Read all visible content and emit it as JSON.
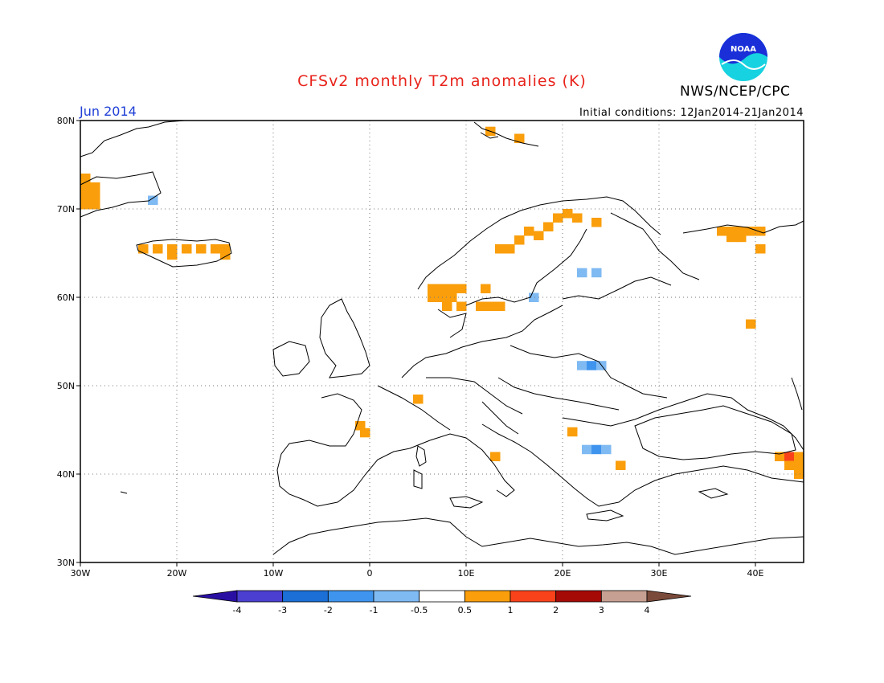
{
  "header": {
    "title": "CFSv2 monthly T2m anomalies (K)",
    "valid_label": "Jun 2014",
    "initial_conditions": "Initial conditions: 12Jan2014-21Jan2014",
    "agency": "NWS/NCEP/CPC",
    "logo_text": "NOAA"
  },
  "map": {
    "lon_range": [
      -30,
      45
    ],
    "lat_range": [
      30,
      80
    ],
    "lat_ticks": [
      "30N",
      "40N",
      "50N",
      "60N",
      "70N",
      "80N"
    ],
    "lon_ticks": [
      "30W",
      "20W",
      "10W",
      "0",
      "10E",
      "20E",
      "30E",
      "40E"
    ],
    "gridlines": true,
    "anomaly_cells": [
      {
        "lon": -29.5,
        "lat": 73.5,
        "cat": "warm1"
      },
      {
        "lon": -29.5,
        "lat": 72.5,
        "cat": "warm1"
      },
      {
        "lon": -28.5,
        "lat": 72.5,
        "cat": "warm1"
      },
      {
        "lon": -29.5,
        "lat": 71.5,
        "cat": "warm1"
      },
      {
        "lon": -28.5,
        "lat": 71.5,
        "cat": "warm1"
      },
      {
        "lon": -29.5,
        "lat": 70.5,
        "cat": "warm1"
      },
      {
        "lon": -28.5,
        "lat": 70.5,
        "cat": "warm1"
      },
      {
        "lon": -22.5,
        "lat": 71.0,
        "cat": "cool1"
      },
      {
        "lon": -23.5,
        "lat": 65.5,
        "cat": "warm1"
      },
      {
        "lon": -22.0,
        "lat": 65.5,
        "cat": "warm1"
      },
      {
        "lon": -20.5,
        "lat": 64.8,
        "cat": "warm1"
      },
      {
        "lon": -20.5,
        "lat": 65.5,
        "cat": "warm1"
      },
      {
        "lon": -19.0,
        "lat": 65.5,
        "cat": "warm1"
      },
      {
        "lon": -17.5,
        "lat": 65.5,
        "cat": "warm1"
      },
      {
        "lon": -16.0,
        "lat": 65.5,
        "cat": "warm1"
      },
      {
        "lon": -15.0,
        "lat": 65.5,
        "cat": "warm1"
      },
      {
        "lon": -15.0,
        "lat": 64.8,
        "cat": "warm1"
      },
      {
        "lon": 6.5,
        "lat": 61.0,
        "cat": "warm1"
      },
      {
        "lon": 7.5,
        "lat": 61.0,
        "cat": "warm1"
      },
      {
        "lon": 8.5,
        "lat": 61.0,
        "cat": "warm1"
      },
      {
        "lon": 9.5,
        "lat": 61.0,
        "cat": "warm1"
      },
      {
        "lon": 6.5,
        "lat": 60.0,
        "cat": "warm1"
      },
      {
        "lon": 7.5,
        "lat": 60.0,
        "cat": "warm1"
      },
      {
        "lon": 8.5,
        "lat": 60.0,
        "cat": "warm1"
      },
      {
        "lon": 8.0,
        "lat": 59.0,
        "cat": "warm1"
      },
      {
        "lon": 9.5,
        "lat": 59.0,
        "cat": "warm1"
      },
      {
        "lon": 11.5,
        "lat": 59.0,
        "cat": "warm1"
      },
      {
        "lon": 12.5,
        "lat": 59.0,
        "cat": "warm1"
      },
      {
        "lon": 13.5,
        "lat": 59.0,
        "cat": "warm1"
      },
      {
        "lon": 12.0,
        "lat": 61.0,
        "cat": "warm1"
      },
      {
        "lon": 13.5,
        "lat": 65.5,
        "cat": "warm1"
      },
      {
        "lon": 14.5,
        "lat": 65.5,
        "cat": "warm1"
      },
      {
        "lon": 15.5,
        "lat": 66.5,
        "cat": "warm1"
      },
      {
        "lon": 16.5,
        "lat": 67.5,
        "cat": "warm1"
      },
      {
        "lon": 17.5,
        "lat": 67.0,
        "cat": "warm1"
      },
      {
        "lon": 18.5,
        "lat": 68.0,
        "cat": "warm1"
      },
      {
        "lon": 19.5,
        "lat": 69.0,
        "cat": "warm1"
      },
      {
        "lon": 20.5,
        "lat": 69.5,
        "cat": "warm1"
      },
      {
        "lon": 21.5,
        "lat": 69.0,
        "cat": "warm1"
      },
      {
        "lon": 23.5,
        "lat": 68.5,
        "cat": "warm1"
      },
      {
        "lon": 17.0,
        "lat": 60.0,
        "cat": "cool1"
      },
      {
        "lon": 22.0,
        "lat": 62.8,
        "cat": "cool1"
      },
      {
        "lon": 23.5,
        "lat": 62.8,
        "cat": "cool1"
      },
      {
        "lon": 22.0,
        "lat": 52.3,
        "cat": "cool1"
      },
      {
        "lon": 23.0,
        "lat": 52.3,
        "cat": "cool2"
      },
      {
        "lon": 24.0,
        "lat": 52.3,
        "cat": "cool1"
      },
      {
        "lon": 5.0,
        "lat": 48.5,
        "cat": "warm1"
      },
      {
        "lon": -1.0,
        "lat": 45.5,
        "cat": "warm1"
      },
      {
        "lon": -0.5,
        "lat": 44.7,
        "cat": "warm1"
      },
      {
        "lon": 13.0,
        "lat": 42.0,
        "cat": "warm1"
      },
      {
        "lon": 21.0,
        "lat": 44.8,
        "cat": "warm1"
      },
      {
        "lon": 22.5,
        "lat": 42.8,
        "cat": "cool1"
      },
      {
        "lon": 23.5,
        "lat": 42.8,
        "cat": "cool2"
      },
      {
        "lon": 24.5,
        "lat": 42.8,
        "cat": "cool1"
      },
      {
        "lon": 26.0,
        "lat": 41.0,
        "cat": "warm1"
      },
      {
        "lon": 36.5,
        "lat": 67.5,
        "cat": "warm1"
      },
      {
        "lon": 37.5,
        "lat": 67.5,
        "cat": "warm1"
      },
      {
        "lon": 38.5,
        "lat": 67.5,
        "cat": "warm1"
      },
      {
        "lon": 39.5,
        "lat": 67.5,
        "cat": "warm1"
      },
      {
        "lon": 40.5,
        "lat": 67.5,
        "cat": "warm1"
      },
      {
        "lon": 37.5,
        "lat": 66.8,
        "cat": "warm1"
      },
      {
        "lon": 38.5,
        "lat": 66.8,
        "cat": "warm1"
      },
      {
        "lon": 40.5,
        "lat": 65.5,
        "cat": "warm1"
      },
      {
        "lon": 39.5,
        "lat": 57.0,
        "cat": "warm1"
      },
      {
        "lon": 42.5,
        "lat": 42.0,
        "cat": "warm1"
      },
      {
        "lon": 43.5,
        "lat": 42.0,
        "cat": "warm2"
      },
      {
        "lon": 44.5,
        "lat": 42.0,
        "cat": "warm1"
      },
      {
        "lon": 44.5,
        "lat": 41.0,
        "cat": "warm1"
      },
      {
        "lon": 43.5,
        "lat": 41.0,
        "cat": "warm1"
      },
      {
        "lon": 44.5,
        "lat": 40.0,
        "cat": "warm1"
      },
      {
        "lon": 12.5,
        "lat": 78.8,
        "cat": "warm1"
      },
      {
        "lon": 15.5,
        "lat": 78.0,
        "cat": "warm1"
      }
    ]
  },
  "legend": {
    "labels": [
      "-4",
      "-3",
      "-2",
      "-1",
      "-0.5",
      "0.5",
      "1",
      "2",
      "3",
      "4"
    ],
    "colors": [
      "#2a0fa3",
      "#4a3fd0",
      "#1b6fd6",
      "#3f95ee",
      "#7fbaf3",
      "#ffffff",
      "#fa9e0b",
      "#f9421a",
      "#a60a06",
      "#c6a092",
      "#7a4a3a"
    ]
  },
  "colors": {
    "warm1": "#fa9e0b",
    "warm2": "#f9421a",
    "cool1": "#7fbaf3",
    "cool2": "#3f95ee",
    "title": "#e8231b",
    "valid_label": "#1f3fd6"
  }
}
